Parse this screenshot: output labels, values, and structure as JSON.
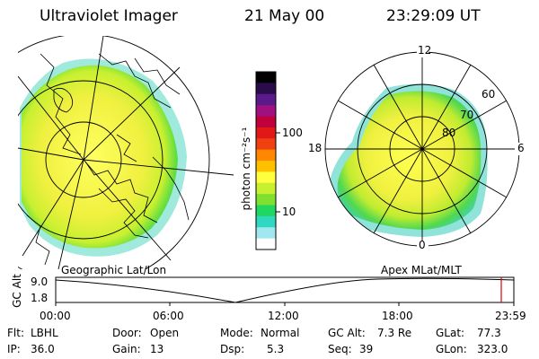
{
  "header": {
    "instrument": "Ultraviolet Imager",
    "date": "21 May 00",
    "time": "23:29:09 UT"
  },
  "left_panel": {
    "caption": "Geographic Lat/Lon"
  },
  "right_panel": {
    "caption": "Apex MLat/MLT",
    "mlt_labels": {
      "top": "12",
      "left": "18",
      "right": "6",
      "bottom": "0"
    },
    "lat_labels": [
      "60",
      "70",
      "80"
    ]
  },
  "colorbar": {
    "label": "photon cm⁻²s⁻¹",
    "tick_100": "100",
    "tick_10": "10",
    "colors": [
      "#000000",
      "#2b0c4a",
      "#5a1a8a",
      "#a01080",
      "#c0003a",
      "#e01818",
      "#f04010",
      "#ff8800",
      "#ffc000",
      "#ffff40",
      "#c8f030",
      "#80e030",
      "#20d860",
      "#30d8c0",
      "#a0e8f0",
      "#ffffff"
    ]
  },
  "altitude_plot": {
    "ylabel": "GC Alt",
    "y_max_label": "9.0",
    "y_min_label": "1.8",
    "time_ticks": [
      "00:00",
      "06:00",
      "12:00",
      "18:00",
      "23:59"
    ],
    "marker_color": "#e00000"
  },
  "info": {
    "flt_label": "Flt:",
    "flt_value": "LBHL",
    "ip_label": "IP:",
    "ip_value": "36.0",
    "door_label": "Door:",
    "door_value": "Open",
    "gain_label": "Gain:",
    "gain_value": "13",
    "mode_label": "Mode:",
    "mode_value": "Normal",
    "dsp_label": "Dsp:",
    "dsp_value": "5.3",
    "gcalt_label": "GC Alt:",
    "gcalt_value": "7.3 Re",
    "seq_label": "Seq:",
    "seq_value": "39",
    "glat_label": "GLat:",
    "glat_value": "77.3",
    "glon_label": "GLon:",
    "glon_value": "323.0"
  }
}
